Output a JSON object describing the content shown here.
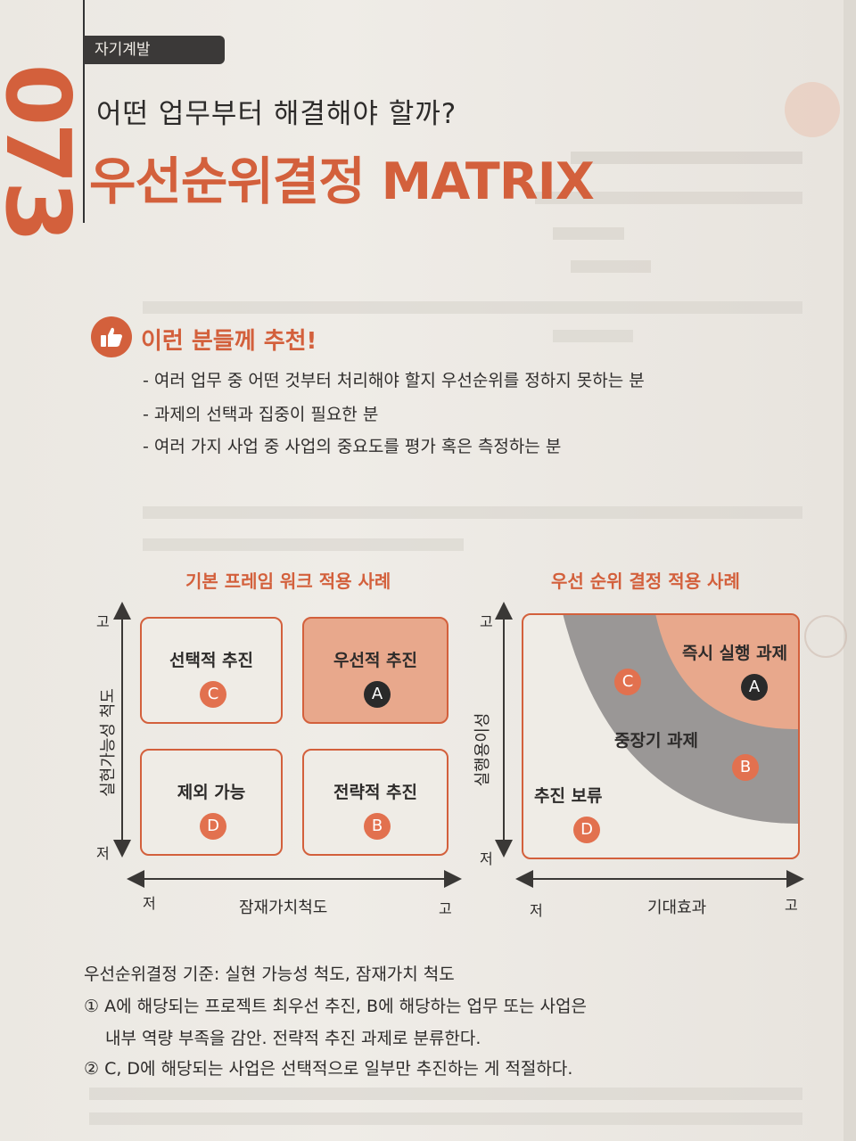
{
  "header": {
    "chapter_number": "073",
    "category": "자기계발",
    "subtitle": "어떤 업무부터 해결해야 할까?",
    "title": "우선순위결정 MATRIX"
  },
  "recommendation": {
    "title": "이런 분들께 추천!",
    "icon": "thumbs-up-icon",
    "items": [
      "- 여러 업무 중 어떤 것부터 처리해야 할지 우선순위를 정하지 못하는 분",
      "- 과제의 선택과 집중이 필요한 분",
      "- 여러 가지 사업 중 사업의 중요도를 평가 혹은 측정하는 분"
    ]
  },
  "left_diagram": {
    "title": "기본 프레임 워크 적용 사례",
    "y_axis_label": "실현가능성 척도",
    "y_high": "고",
    "y_low": "저",
    "x_axis_label": "잠재가치척도",
    "x_low": "저",
    "x_high": "고",
    "cells": [
      {
        "label": "선택적 추진",
        "badge": "C"
      },
      {
        "label": "우선적 추진",
        "badge": "A"
      },
      {
        "label": "제외 가능",
        "badge": "D"
      },
      {
        "label": "전략적 추진",
        "badge": "B"
      }
    ]
  },
  "right_diagram": {
    "title": "우선 순위 결정 적용 사례",
    "y_axis_label": "실행용이성",
    "y_high": "고",
    "y_low": "저",
    "x_axis_label": "기대효과",
    "x_low": "저",
    "x_high": "고",
    "zones": {
      "immediate": "즉시 실행 과제",
      "mid_long": "중장기 과제",
      "hold": "추진 보류"
    },
    "badges": {
      "a": "A",
      "b": "B",
      "c": "C",
      "d": "D"
    }
  },
  "criteria": {
    "heading": "우선순위결정 기준: 실현 가능성 척도, 잠재가치 척도",
    "point1_line1": "① A에 해당되는 프로젝트 최우선 추진, B에 해당하는 업무 또는 사업은",
    "point1_line2": "내부 역량 부족을 감안. 전략적 추진 과제로 분류한다.",
    "point2": "② C, D에 해당되는 사업은 선택적으로 일부만 추진하는 게 적절하다."
  },
  "colors": {
    "accent": "#d3603c",
    "accent_light": "#e8a88c",
    "badge": "#e2714f",
    "badge_dark": "#2a2a2a",
    "zone_gray": "#9a9796"
  }
}
